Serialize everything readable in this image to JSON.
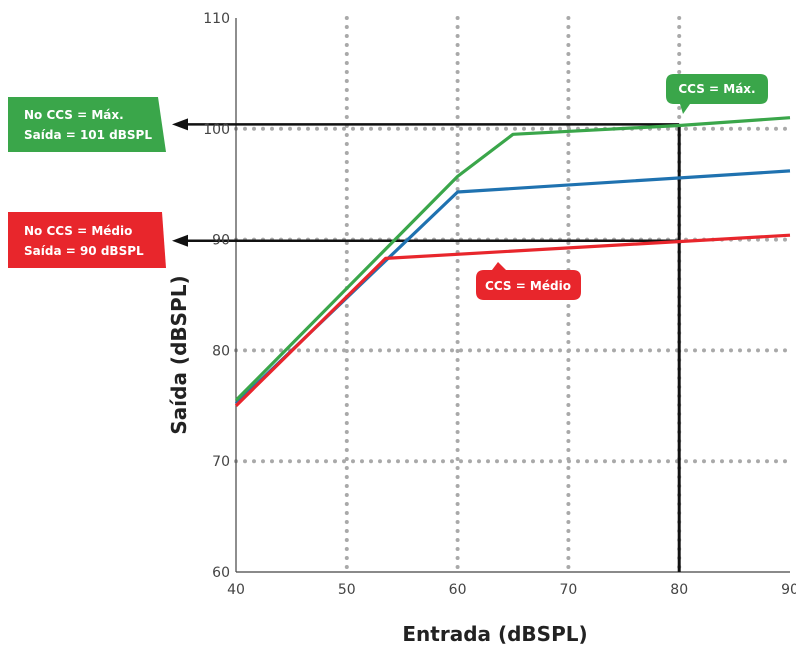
{
  "chart_data": {
    "type": "line",
    "xlabel": "Entrada (dBSPL)",
    "ylabel": "Saída (dBSPL)",
    "xlim": [
      40,
      90
    ],
    "ylim": [
      60,
      110
    ],
    "xticks": [
      40,
      50,
      60,
      70,
      80,
      90
    ],
    "yticks": [
      60,
      70,
      80,
      90,
      100,
      110
    ],
    "grid": "dotted",
    "series": [
      {
        "color": "#3aa64a",
        "points": [
          [
            40,
            75.5
          ],
          [
            60,
            95.7
          ],
          [
            65,
            99.5
          ],
          [
            80,
            100.3
          ],
          [
            90,
            101
          ]
        ]
      },
      {
        "color": "#1f72b0",
        "points": [
          [
            40,
            75.2
          ],
          [
            60,
            94.3
          ],
          [
            90,
            96.2
          ]
        ]
      },
      {
        "color": "#e8262c",
        "points": [
          [
            40,
            75
          ],
          [
            53.5,
            88.3
          ],
          [
            90,
            90.4
          ]
        ]
      }
    ],
    "reference_lines": {
      "x": 80,
      "y": [
        100.4,
        89.9
      ]
    },
    "callouts": {
      "max_curve": {
        "text": "CCS = Máx.",
        "color": "#3aa64a"
      },
      "mid_curve": {
        "text": "CCS = Médio",
        "color": "#e8262c"
      },
      "max_output": {
        "line1": "No CCS = Máx.",
        "line2": "Saída = 101 dBSPL",
        "color": "#3aa64a"
      },
      "mid_output": {
        "line1": "No CCS = Médio",
        "line2": "Saída = 90 dBSPL",
        "color": "#e8262c"
      }
    }
  }
}
